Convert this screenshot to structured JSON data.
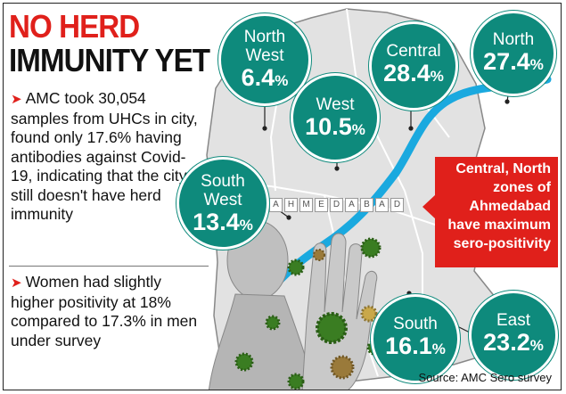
{
  "headline": {
    "line1": "NO HERD",
    "line2": "IMMUNITY YET"
  },
  "bullets": [
    {
      "text": "AMC took 30,054 samples from UHCs in city, found only 17.6% having antibodies against Covid-19, indicating that the city still doesn't have herd immunity"
    },
    {
      "text": "Women had slightly higher positivity at 18% compared to 17.3% in men under survey"
    }
  ],
  "bullet_marker": "➤",
  "zones": [
    {
      "name": "North West",
      "value": "6.4",
      "unit": "%"
    },
    {
      "name": "West",
      "value": "10.5",
      "unit": "%"
    },
    {
      "name": "Central",
      "value": "28.4",
      "unit": "%"
    },
    {
      "name": "North",
      "value": "27.4",
      "unit": "%"
    },
    {
      "name": "South West",
      "value": "13.4",
      "unit": "%"
    },
    {
      "name": "South",
      "value": "16.1",
      "unit": "%"
    },
    {
      "name": "East",
      "value": "23.2",
      "unit": "%"
    }
  ],
  "callout": {
    "text": "Central, North zones of Ahmedabad have maximum sero-positivity"
  },
  "city_label": [
    "A",
    "H",
    "M",
    "E",
    "D",
    "A",
    "B",
    "A",
    "D"
  ],
  "source": "Source: AMC Sero survey",
  "colors": {
    "bubble": "#0e8a7c",
    "accent": "#e0201b",
    "river": "#1aa9df",
    "map_fill": "#e2e2e2",
    "virus": "#3a7d22"
  }
}
